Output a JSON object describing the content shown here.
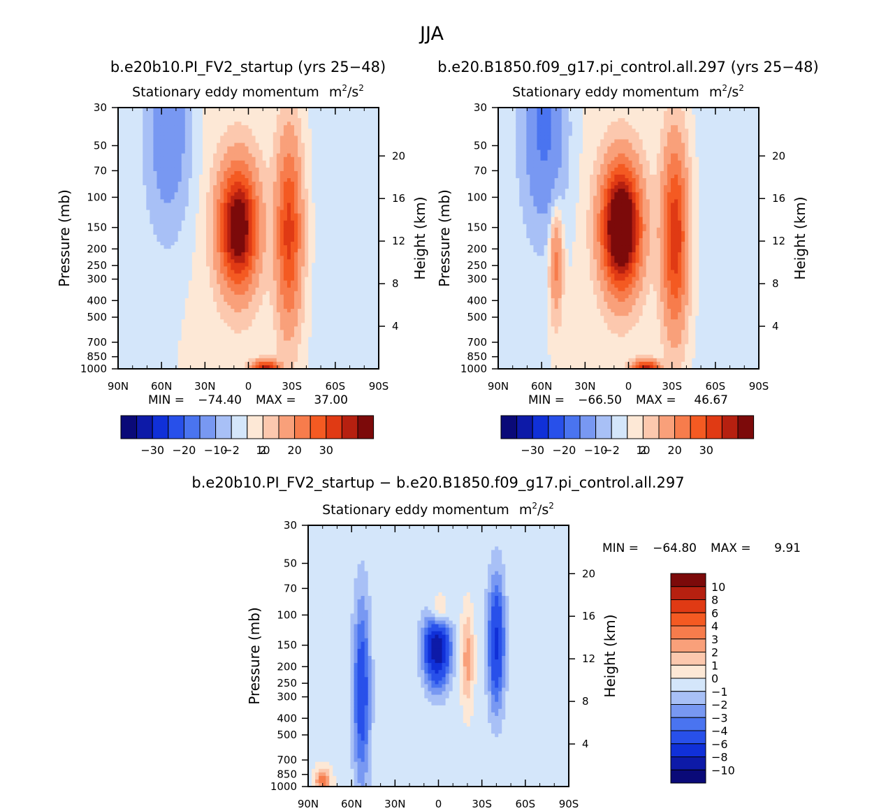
{
  "figure_title": "JJA",
  "colors": {
    "blue_scale": [
      "#0a0a78",
      "#0d1aa8",
      "#1030d8",
      "#2850ea",
      "#4a74f0",
      "#7898f2",
      "#a8c0f6",
      "#d4e6fa"
    ],
    "red_scale": [
      "#fde8d6",
      "#fcc8ae",
      "#f9a07a",
      "#f77c4c",
      "#f45a22",
      "#e03a14",
      "#b62010",
      "#7c0a0a"
    ]
  },
  "chart_data": [
    {
      "type": "contour",
      "panel": "top-left",
      "run_label": "b.e20b10.PI_FV2_startup (yrs 25−48)",
      "title": "Stationary eddy momentum",
      "units_base": "m",
      "units_exp1": "2",
      "units_mid": "/s",
      "units_exp2": "2",
      "xlabel": "",
      "ylabel": "Pressure (mb)",
      "y2label": "Height (km)",
      "x_ticks": [
        "90N",
        "60N",
        "30N",
        "0",
        "30S",
        "60S",
        "90S"
      ],
      "y_ticks": [
        1000,
        850,
        700,
        500,
        400,
        300,
        250,
        200,
        150,
        100,
        70,
        50,
        30
      ],
      "height_ticks": [
        4,
        8,
        12,
        16,
        20
      ],
      "ylim": [
        1000,
        30
      ],
      "min_label": "MIN =",
      "min": "−74.40",
      "max_label": "MAX =",
      "max": "37.00",
      "colorbar_labels": [
        "−30",
        "−20",
        "−10",
        "−2",
        "2",
        "10",
        "20",
        "30"
      ],
      "features": [
        {
          "lat": 7,
          "p": 150,
          "value": 37,
          "spread_lat": 9,
          "spread_p": 0.55
        },
        {
          "lat": -28,
          "p": 160,
          "value": 22,
          "spread_lat": 6,
          "spread_p": 0.85
        },
        {
          "lat": -12,
          "p": 990,
          "value": 26,
          "spread_lat": 6,
          "spread_p": 0.07
        },
        {
          "lat": 55,
          "p": 40,
          "value": -9,
          "spread_lat": 10,
          "spread_p": 0.9
        }
      ]
    },
    {
      "type": "contour",
      "panel": "top-right",
      "run_label": "b.e20.B1850.f09_g17.pi_control.all.297 (yrs 25−48)",
      "title": "Stationary eddy momentum",
      "units_base": "m",
      "units_exp1": "2",
      "units_mid": "/s",
      "units_exp2": "2",
      "xlabel": "",
      "ylabel": "Pressure (mb)",
      "y2label": "Height (km)",
      "x_ticks": [
        "90N",
        "60N",
        "30N",
        "0",
        "30S",
        "60S",
        "90S"
      ],
      "y_ticks": [
        1000,
        850,
        700,
        500,
        400,
        300,
        250,
        200,
        150,
        100,
        70,
        50,
        30
      ],
      "height_ticks": [
        4,
        8,
        12,
        16,
        20
      ],
      "ylim": [
        1000,
        30
      ],
      "min_label": "MIN =",
      "min": "−66.50",
      "max_label": "MAX =",
      "max": "46.67",
      "colorbar_labels": [
        "−30",
        "−20",
        "−10",
        "−2",
        "2",
        "10",
        "20",
        "30"
      ],
      "features": [
        {
          "lat": 5,
          "p": 150,
          "value": 46,
          "spread_lat": 9,
          "spread_p": 0.55
        },
        {
          "lat": -32,
          "p": 170,
          "value": 24,
          "spread_lat": 6,
          "spread_p": 0.85
        },
        {
          "lat": -12,
          "p": 990,
          "value": 28,
          "spread_lat": 6,
          "spread_p": 0.07
        },
        {
          "lat": 50,
          "p": 240,
          "value": 12,
          "spread_lat": 3,
          "spread_p": 0.5
        },
        {
          "lat": 58,
          "p": 40,
          "value": -11,
          "spread_lat": 10,
          "spread_p": 0.9
        }
      ]
    },
    {
      "type": "contour",
      "panel": "bottom-difference",
      "run_label": "b.e20b10.PI_FV2_startup − b.e20.B1850.f09_g17.pi_control.all.297",
      "title": "Stationary eddy momentum",
      "units_base": "m",
      "units_exp1": "2",
      "units_mid": "/s",
      "units_exp2": "2",
      "xlabel": "",
      "ylabel": "Pressure (mb)",
      "y2label": "Height (km)",
      "x_ticks": [
        "90N",
        "60N",
        "30N",
        "0",
        "30S",
        "60S",
        "90S"
      ],
      "y_ticks": [
        1000,
        850,
        700,
        500,
        400,
        300,
        250,
        200,
        150,
        100,
        70,
        50,
        30
      ],
      "height_ticks": [
        4,
        8,
        12,
        16,
        20
      ],
      "ylim": [
        1000,
        30
      ],
      "min_label": "MIN =",
      "min": "−64.80",
      "max_label": "MAX =",
      "max": "9.91",
      "colorbar_labels": [
        "10",
        "8",
        "6",
        "4",
        "3",
        "2",
        "1",
        "0",
        "−1",
        "−2",
        "−3",
        "−4",
        "−6",
        "−8",
        "−10"
      ],
      "features": [
        {
          "lat": -40,
          "p": 145,
          "value": -6,
          "spread_lat": 4,
          "spread_p": 0.6
        },
        {
          "lat": -20,
          "p": 180,
          "value": 3,
          "spread_lat": 3,
          "spread_p": 0.45
        },
        {
          "lat": 0,
          "p": 100,
          "value": 5,
          "spread_lat": 5,
          "spread_p": 0.2
        },
        {
          "lat": 1,
          "p": 150,
          "value": -10,
          "spread_lat": 6,
          "spread_p": 0.35
        },
        {
          "lat": 53,
          "p": 280,
          "value": -5,
          "spread_lat": 4,
          "spread_p": 0.85
        },
        {
          "lat": 80,
          "p": 920,
          "value": 4,
          "spread_lat": 4,
          "spread_p": 0.12
        }
      ]
    }
  ]
}
